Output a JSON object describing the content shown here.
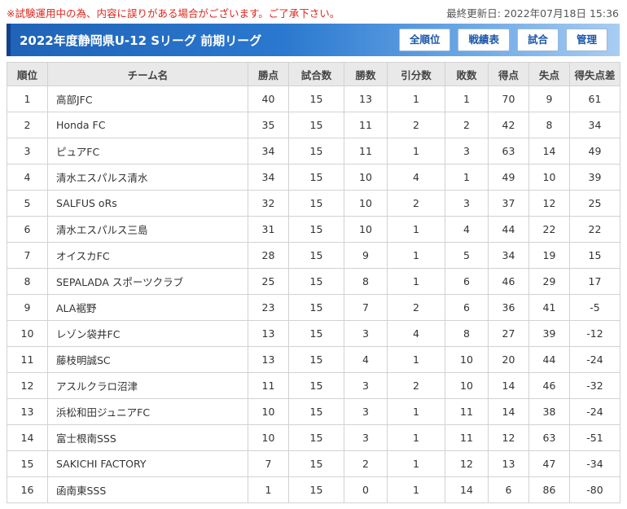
{
  "notice": "※試験運用中の為、内容に誤りがある場合がございます。ご了承下さい。",
  "last_updated": "最終更新日: 2022年07月18日 15:36",
  "header": {
    "title": "2022年度静岡県U-12 Sリーグ 前期リーグ",
    "buttons": [
      "全順位",
      "戦績表",
      "試合",
      "管理"
    ]
  },
  "colors": {
    "accent": "#1f63b7",
    "notice": "#e0241b",
    "header_bg": "#e9e9e9"
  },
  "table": {
    "columns": [
      "順位",
      "チーム名",
      "勝点",
      "試合数",
      "勝数",
      "引分数",
      "敗数",
      "得点",
      "失点",
      "得失点差"
    ],
    "rows": [
      [
        "1",
        "高部JFC",
        "40",
        "15",
        "13",
        "1",
        "1",
        "70",
        "9",
        "61"
      ],
      [
        "2",
        "Honda FC",
        "35",
        "15",
        "11",
        "2",
        "2",
        "42",
        "8",
        "34"
      ],
      [
        "3",
        "ピュアFC",
        "34",
        "15",
        "11",
        "1",
        "3",
        "63",
        "14",
        "49"
      ],
      [
        "4",
        "清水エスパルス清水",
        "34",
        "15",
        "10",
        "4",
        "1",
        "49",
        "10",
        "39"
      ],
      [
        "5",
        "SALFUS oRs",
        "32",
        "15",
        "10",
        "2",
        "3",
        "37",
        "12",
        "25"
      ],
      [
        "6",
        "清水エスパルス三島",
        "31",
        "15",
        "10",
        "1",
        "4",
        "44",
        "22",
        "22"
      ],
      [
        "7",
        "オイスカFC",
        "28",
        "15",
        "9",
        "1",
        "5",
        "34",
        "19",
        "15"
      ],
      [
        "8",
        "SEPALADA スポーツクラブ",
        "25",
        "15",
        "8",
        "1",
        "6",
        "46",
        "29",
        "17"
      ],
      [
        "9",
        "ALA裾野",
        "23",
        "15",
        "7",
        "2",
        "6",
        "36",
        "41",
        "-5"
      ],
      [
        "10",
        "レゾン袋井FC",
        "13",
        "15",
        "3",
        "4",
        "8",
        "27",
        "39",
        "-12"
      ],
      [
        "11",
        "藤枝明誠SC",
        "13",
        "15",
        "4",
        "1",
        "10",
        "20",
        "44",
        "-24"
      ],
      [
        "12",
        "アスルクラロ沼津",
        "11",
        "15",
        "3",
        "2",
        "10",
        "14",
        "46",
        "-32"
      ],
      [
        "13",
        "浜松和田ジュニアFC",
        "10",
        "15",
        "3",
        "1",
        "11",
        "14",
        "38",
        "-24"
      ],
      [
        "14",
        "富士根南SSS",
        "10",
        "15",
        "3",
        "1",
        "11",
        "12",
        "63",
        "-51"
      ],
      [
        "15",
        "SAKICHI FACTORY",
        "7",
        "15",
        "2",
        "1",
        "12",
        "13",
        "47",
        "-34"
      ],
      [
        "16",
        "函南東SSS",
        "1",
        "15",
        "0",
        "1",
        "14",
        "6",
        "86",
        "-80"
      ]
    ]
  }
}
